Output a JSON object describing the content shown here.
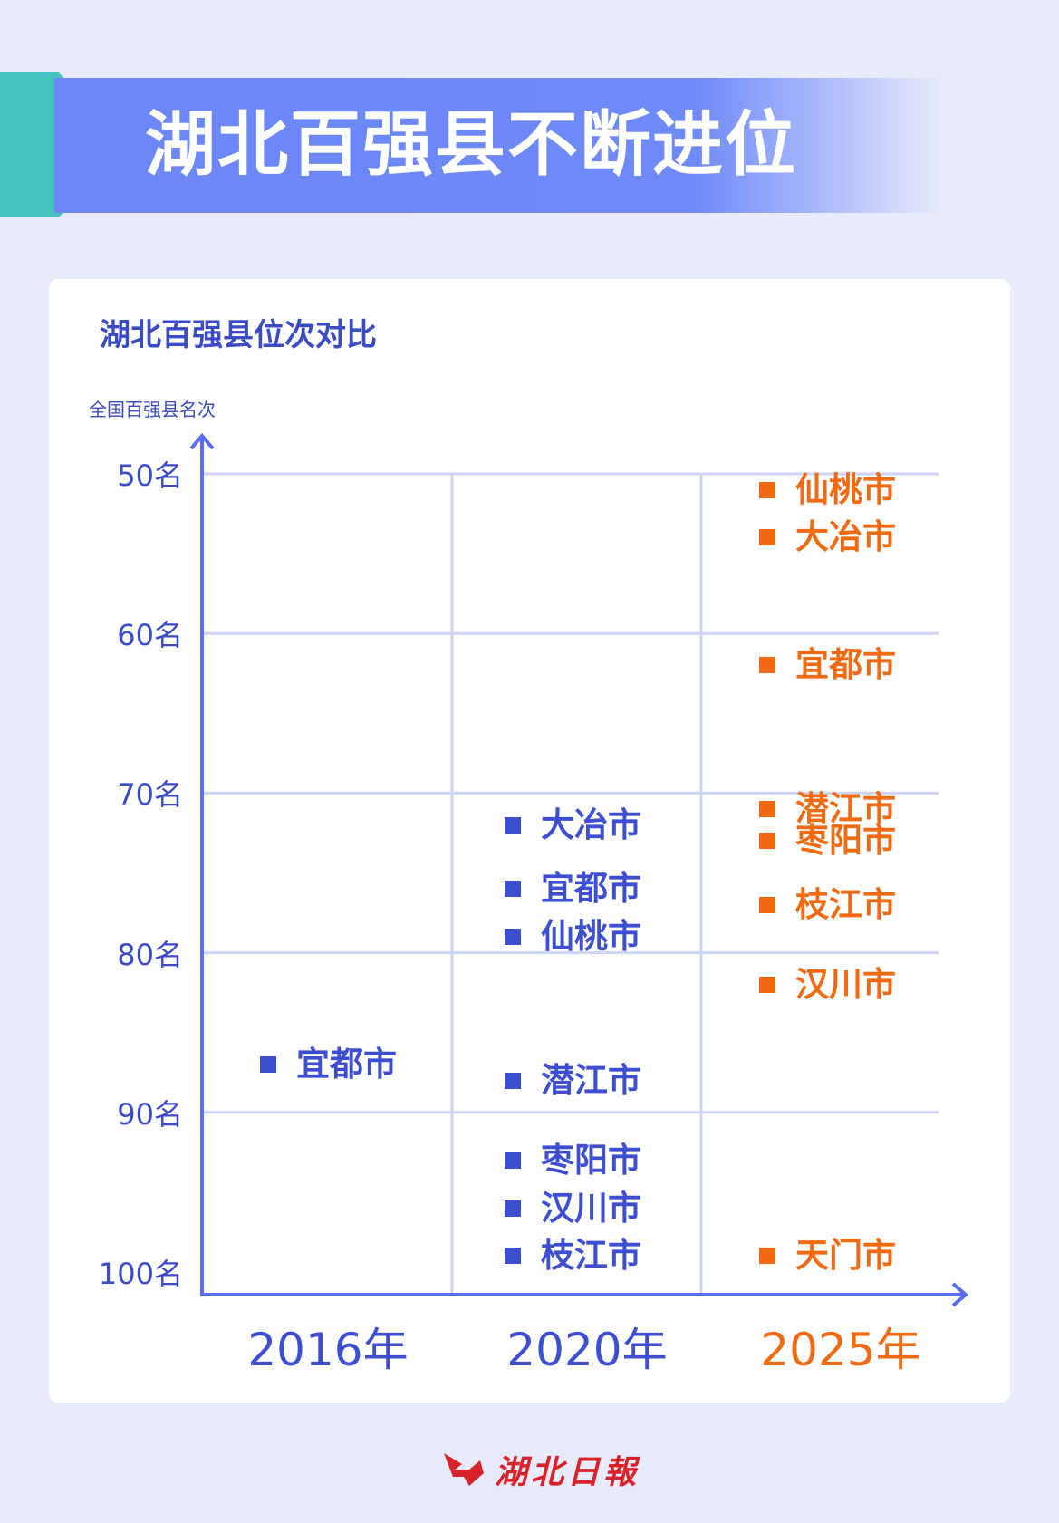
{
  "header": {
    "title": "湖北百强县不断进位"
  },
  "colors": {
    "blue": "#3d4fd0",
    "orange": "#f06a12",
    "band": "#6b86f7",
    "teal": "#45c3bf",
    "grid": "#cdd4f6",
    "axis": "#5a6cf0"
  },
  "chart_data": {
    "type": "scatter",
    "title": "湖北百强县位次对比",
    "ylabel": "全国百强县名次",
    "ylim": [
      50,
      100
    ],
    "y_inverted": true,
    "y_ticks": [
      "50名",
      "60名",
      "70名",
      "80名",
      "90名",
      "100名"
    ],
    "categories": [
      "2016年",
      "2020年",
      "2025年"
    ],
    "grid": true,
    "series": [
      {
        "category": "2016年",
        "color": "blue",
        "points": [
          {
            "label": "宜都市",
            "rank": 87
          }
        ]
      },
      {
        "category": "2020年",
        "color": "blue",
        "points": [
          {
            "label": "大冶市",
            "rank": 72
          },
          {
            "label": "宜都市",
            "rank": 76
          },
          {
            "label": "仙桃市",
            "rank": 79
          },
          {
            "label": "潜江市",
            "rank": 88
          },
          {
            "label": "枣阳市",
            "rank": 93
          },
          {
            "label": "汉川市",
            "rank": 96
          },
          {
            "label": "枝江市",
            "rank": 99
          }
        ]
      },
      {
        "category": "2025年",
        "color": "orange",
        "points": [
          {
            "label": "仙桃市",
            "rank": 51
          },
          {
            "label": "大冶市",
            "rank": 54
          },
          {
            "label": "宜都市",
            "rank": 62
          },
          {
            "label": "潜江市",
            "rank": 71
          },
          {
            "label": "枣阳市",
            "rank": 73
          },
          {
            "label": "枝江市",
            "rank": 77
          },
          {
            "label": "汉川市",
            "rank": 82
          },
          {
            "label": "天门市",
            "rank": 99
          }
        ]
      }
    ]
  },
  "footer": {
    "logo_text": "湖北日報"
  }
}
